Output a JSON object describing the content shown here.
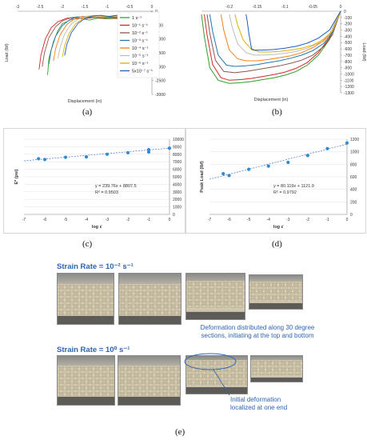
{
  "colors": {
    "s1": "#2ca02c",
    "s2": "#d62728",
    "s3": "#8c564b",
    "s4": "#1f77b4",
    "s5": "#ff7f0e",
    "s6": "#bdbdbd",
    "s7": "#e0b000",
    "s8": "#1f5fbf",
    "fit": "#4472c4",
    "point": "#2e8bd6",
    "annot": "#2f64b0"
  },
  "chart_data": [
    {
      "type": "line",
      "panel": "(a)",
      "xlabel": "Displacement (in)",
      "ylabel": "Load (lbf)",
      "xlim": [
        -3,
        0
      ],
      "ylim": [
        -3000,
        0
      ],
      "x_ticks": [
        "-3",
        "-2.5",
        "-2",
        "-1.5",
        "-1",
        "-0.5",
        "0"
      ],
      "y_ticks": [
        "0",
        "-500",
        "-1000",
        "-1500",
        "-2000",
        "-2500",
        "-3000"
      ],
      "legend": [
        "1 s⁻¹",
        "10⁻¹ s⁻¹",
        "10⁻² s⁻¹",
        "10⁻³ s⁻¹",
        "10⁻⁴ s⁻¹",
        "10⁻⁵ s⁻¹",
        "10⁻⁶ s⁻¹",
        "5x10⁻⁷ s⁻¹"
      ],
      "series": [
        {
          "name": "1 s⁻¹",
          "color_key": "s1",
          "x": [
            -2.33,
            -2.3,
            -2.2,
            -2.1,
            -2.0,
            -1.8,
            -1.6,
            -1.4,
            -1.2,
            -1.0,
            -0.8,
            -0.6,
            -0.5,
            -0.42,
            -0.35,
            -0.25,
            -0.12,
            0
          ],
          "y": [
            -2300,
            -1700,
            -1100,
            -700,
            -450,
            -300,
            -260,
            -320,
            -250,
            -280,
            -260,
            -300,
            -420,
            -700,
            -400,
            -300,
            -200,
            0
          ]
        },
        {
          "name": "10⁻¹ s⁻¹",
          "color_key": "s2",
          "x": [
            -2.52,
            -2.48,
            -2.38,
            -2.25,
            -2.1,
            -1.9,
            -1.7,
            -1.5,
            -1.3,
            -1.1,
            -0.9,
            -0.7,
            -0.5,
            -0.38,
            -0.3,
            -0.18,
            -0.08,
            0
          ],
          "y": [
            -2100,
            -1600,
            -1000,
            -600,
            -380,
            -250,
            -230,
            -270,
            -220,
            -250,
            -230,
            -260,
            -360,
            -600,
            -350,
            -250,
            -150,
            0
          ]
        },
        {
          "name": "10⁻² s⁻¹",
          "color_key": "s3",
          "x": [
            -2.45,
            -2.4,
            -2.3,
            -2.15,
            -2.0,
            -1.8,
            -1.6,
            -1.4,
            -1.2,
            -1.0,
            -0.8,
            -0.6,
            -0.45,
            -0.35,
            -0.28,
            -0.15,
            -0.05,
            0
          ],
          "y": [
            -2000,
            -1500,
            -950,
            -560,
            -350,
            -230,
            -200,
            -250,
            -210,
            -230,
            -210,
            -240,
            -330,
            -560,
            -330,
            -230,
            -130,
            0
          ]
        },
        {
          "name": "10⁻³ s⁻¹",
          "color_key": "s4",
          "x": [
            -2.3,
            -2.25,
            -2.15,
            -2.0,
            -1.85,
            -1.7,
            -1.5,
            -1.3,
            -1.1,
            -0.9,
            -0.7,
            -0.55,
            -0.45,
            -0.32,
            -0.25,
            -0.12,
            -0.04,
            0
          ],
          "y": [
            -1900,
            -1400,
            -900,
            -520,
            -320,
            -210,
            -190,
            -230,
            -190,
            -210,
            -190,
            -220,
            -300,
            -520,
            -300,
            -210,
            -120,
            0
          ]
        },
        {
          "name": "10⁻⁴ s⁻¹",
          "color_key": "s5",
          "x": [
            -2.2,
            -2.15,
            -2.05,
            -1.9,
            -1.75,
            -1.6,
            -1.4,
            -1.2,
            -1.0,
            -0.8,
            -0.65,
            -0.5,
            -0.4,
            -0.3,
            -0.22,
            -0.1,
            -0.03,
            0
          ],
          "y": [
            -1800,
            -1350,
            -850,
            -480,
            -300,
            -200,
            -180,
            -220,
            -180,
            -200,
            -180,
            -210,
            -290,
            -480,
            -280,
            -200,
            -110,
            0
          ]
        },
        {
          "name": "10⁻⁵ s⁻¹",
          "color_key": "s6",
          "x": [
            -2.1,
            -2.05,
            -1.95,
            -1.8,
            -1.65,
            -1.5,
            -1.3,
            -1.1,
            -0.9,
            -0.75,
            -0.6,
            -0.48,
            -0.38,
            -0.28,
            -0.2,
            -0.1,
            -0.03,
            0
          ],
          "y": [
            -1700,
            -1300,
            -820,
            -460,
            -290,
            -190,
            -170,
            -210,
            -170,
            -190,
            -170,
            -200,
            -280,
            -450,
            -270,
            -190,
            -100,
            0
          ]
        },
        {
          "name": "10⁻⁶ s⁻¹",
          "color_key": "s7",
          "x": [
            -2.0,
            -1.95,
            -1.85,
            -1.7,
            -1.55,
            -1.4,
            -1.2,
            -1.0,
            -0.85,
            -0.7,
            -0.55,
            -0.45,
            -0.35,
            -0.26,
            -0.18,
            -0.09,
            -0.02,
            0
          ],
          "y": [
            -1650,
            -1250,
            -800,
            -450,
            -280,
            -180,
            -160,
            -200,
            -160,
            -180,
            -160,
            -190,
            -270,
            -430,
            -260,
            -180,
            -90,
            0
          ]
        },
        {
          "name": "5x10⁻⁷ s⁻¹",
          "color_key": "s8",
          "x": [
            -1.95,
            -1.9,
            -1.8,
            -1.65,
            -1.5,
            -1.35,
            -1.15,
            -0.95,
            -0.8,
            -0.65,
            -0.52,
            -0.42,
            -0.33,
            -0.24,
            -0.16,
            -0.08,
            -0.02,
            0
          ],
          "y": [
            -1600,
            -1200,
            -780,
            -440,
            -270,
            -170,
            -150,
            -190,
            -150,
            -170,
            -150,
            -180,
            -260,
            -410,
            -250,
            -170,
            -80,
            0
          ]
        }
      ]
    },
    {
      "type": "line",
      "panel": "(b)",
      "xlabel": "Displacement (in)",
      "ylabel": "Load (lbf)",
      "xlim": [
        -0.25,
        0
      ],
      "ylim": [
        -1300,
        0
      ],
      "x_ticks": [
        "-0.2",
        "-0.15",
        "-0.1",
        "-0.05",
        "0"
      ],
      "y_ticks": [
        "0",
        "-100",
        "-200",
        "-300",
        "-400",
        "-500",
        "-600",
        "-700",
        "-800",
        "-900",
        "-1000",
        "-1100",
        "-1200",
        "-1300"
      ],
      "series": [
        {
          "name": "1 s⁻¹",
          "color_key": "s1",
          "x": [
            -0.25,
            -0.245,
            -0.235,
            -0.22,
            -0.2,
            -0.18,
            -0.16,
            -0.14,
            -0.12,
            -0.1,
            -0.08,
            -0.06,
            -0.04,
            -0.02,
            0
          ],
          "y": [
            -50,
            -400,
            -900,
            -1100,
            -1150,
            -1140,
            -1120,
            -1090,
            -1060,
            -1020,
            -960,
            -860,
            -700,
            -450,
            0
          ]
        },
        {
          "name": "10⁻¹ s⁻¹",
          "color_key": "s2",
          "x": [
            -0.245,
            -0.24,
            -0.23,
            -0.215,
            -0.2,
            -0.18,
            -0.16,
            -0.14,
            -0.12,
            -0.1,
            -0.08,
            -0.06,
            -0.04,
            -0.02,
            0
          ],
          "y": [
            -50,
            -380,
            -850,
            -1060,
            -1100,
            -1090,
            -1070,
            -1040,
            -1010,
            -970,
            -910,
            -820,
            -660,
            -420,
            0
          ]
        },
        {
          "name": "10⁻² s⁻¹",
          "color_key": "s3",
          "x": [
            -0.24,
            -0.235,
            -0.225,
            -0.21,
            -0.19,
            -0.17,
            -0.15,
            -0.13,
            -0.11,
            -0.09,
            -0.07,
            -0.05,
            -0.03,
            -0.015,
            0
          ],
          "y": [
            -50,
            -350,
            -780,
            -960,
            -980,
            -960,
            -930,
            -900,
            -870,
            -830,
            -780,
            -700,
            -560,
            -380,
            0
          ]
        },
        {
          "name": "10⁻³ s⁻¹",
          "color_key": "s4",
          "x": [
            -0.235,
            -0.23,
            -0.22,
            -0.205,
            -0.19,
            -0.17,
            -0.15,
            -0.13,
            -0.11,
            -0.09,
            -0.07,
            -0.05,
            -0.03,
            -0.015,
            0
          ],
          "y": [
            -50,
            -320,
            -700,
            -860,
            -880,
            -870,
            -850,
            -820,
            -790,
            -750,
            -700,
            -630,
            -510,
            -340,
            0
          ]
        },
        {
          "name": "10⁻⁴ s⁻¹",
          "color_key": "s5",
          "x": [
            -0.215,
            -0.21,
            -0.2,
            -0.185,
            -0.17,
            -0.15,
            -0.13,
            -0.11,
            -0.09,
            -0.07,
            -0.05,
            -0.03,
            -0.015,
            0
          ],
          "y": [
            -50,
            -300,
            -620,
            -760,
            -790,
            -790,
            -770,
            -740,
            -710,
            -660,
            -580,
            -470,
            -320,
            0
          ]
        },
        {
          "name": "10⁻⁵ s⁻¹",
          "color_key": "s6",
          "x": [
            -0.2,
            -0.195,
            -0.185,
            -0.17,
            -0.155,
            -0.14,
            -0.12,
            -0.1,
            -0.08,
            -0.06,
            -0.04,
            -0.02,
            0
          ],
          "y": [
            -50,
            -250,
            -520,
            -660,
            -700,
            -700,
            -690,
            -670,
            -640,
            -590,
            -510,
            -360,
            0
          ]
        },
        {
          "name": "10⁻⁶ s⁻¹",
          "color_key": "s7",
          "x": [
            -0.19,
            -0.185,
            -0.175,
            -0.16,
            -0.145,
            -0.13,
            -0.11,
            -0.09,
            -0.07,
            -0.05,
            -0.03,
            -0.015,
            0
          ],
          "y": [
            -50,
            -220,
            -460,
            -610,
            -650,
            -650,
            -640,
            -620,
            -590,
            -540,
            -450,
            -320,
            0
          ]
        },
        {
          "name": "5x10⁻⁷ s⁻¹",
          "color_key": "s8",
          "x": [
            -0.17,
            -0.168,
            -0.165,
            -0.16,
            -0.155,
            -0.14,
            -0.12,
            -0.1,
            -0.08,
            -0.06,
            -0.04,
            -0.02,
            0
          ],
          "y": [
            -50,
            -150,
            -350,
            -600,
            -620,
            -620,
            -610,
            -590,
            -560,
            -510,
            -430,
            -300,
            0
          ]
        }
      ]
    },
    {
      "type": "scatter",
      "panel": "(c)",
      "xlabel": "log ε̇",
      "ylabel": "E* (psi)",
      "xlim": [
        -7,
        0
      ],
      "ylim": [
        0,
        10000
      ],
      "x_ticks": [
        "-7",
        "-6",
        "-5",
        "-4",
        "-3",
        "-2",
        "-1",
        "0"
      ],
      "y_ticks": [
        "0",
        "1000",
        "2000",
        "3000",
        "4000",
        "5000",
        "6000",
        "7000",
        "8000",
        "9000",
        "10000"
      ],
      "x": [
        -6.3,
        -6,
        -5,
        -4,
        -3,
        -2,
        -1,
        -1,
        0
      ],
      "y": [
        7400,
        7300,
        7600,
        7650,
        8000,
        8200,
        8300,
        8600,
        8800
      ],
      "fit_line": {
        "x": [
          -7,
          0
        ],
        "y": [
          7129,
          8807.5
        ]
      },
      "annotation": {
        "equation": "y = 239.76x + 8807.5",
        "r2": "R² = 0.9503"
      }
    },
    {
      "type": "scatter",
      "panel": "(d)",
      "xlabel": "log ε̇",
      "ylabel": "Peak Load (lbf)",
      "xlim": [
        -7,
        0
      ],
      "ylim": [
        0,
        1200
      ],
      "x_ticks": [
        "-7",
        "-6",
        "-5",
        "-4",
        "-3",
        "-2",
        "-1",
        "0"
      ],
      "y_ticks": [
        "0",
        "200",
        "400",
        "600",
        "800",
        "1000",
        "1200"
      ],
      "x": [
        -6.3,
        -6,
        -5,
        -4,
        -3,
        -2,
        -1,
        0
      ],
      "y": [
        650,
        620,
        720,
        770,
        830,
        940,
        1050,
        1140
      ],
      "fit_line": {
        "x": [
          -7,
          0
        ],
        "y": [
          561,
          1121.9
        ]
      },
      "annotation": {
        "equation": "y = 80.119x + 1121.9",
        "r2": "R² = 0.9792"
      }
    }
  ],
  "panel_labels": {
    "a": "(a)",
    "b": "(b)",
    "c": "(c)",
    "d": "(d)",
    "e": "(e)"
  },
  "photos": {
    "strain_rate_1": "Strain Rate = 10⁻² s⁻¹",
    "strain_rate_2": "Strain Rate = 10⁰ s⁻¹",
    "note_1_line1": "Deformation distributed along 30 degree",
    "note_1_line2": "sections, initiating at the top and bottom",
    "note_2_line1": "Initial deformation",
    "note_2_line2": "localized at one end"
  }
}
